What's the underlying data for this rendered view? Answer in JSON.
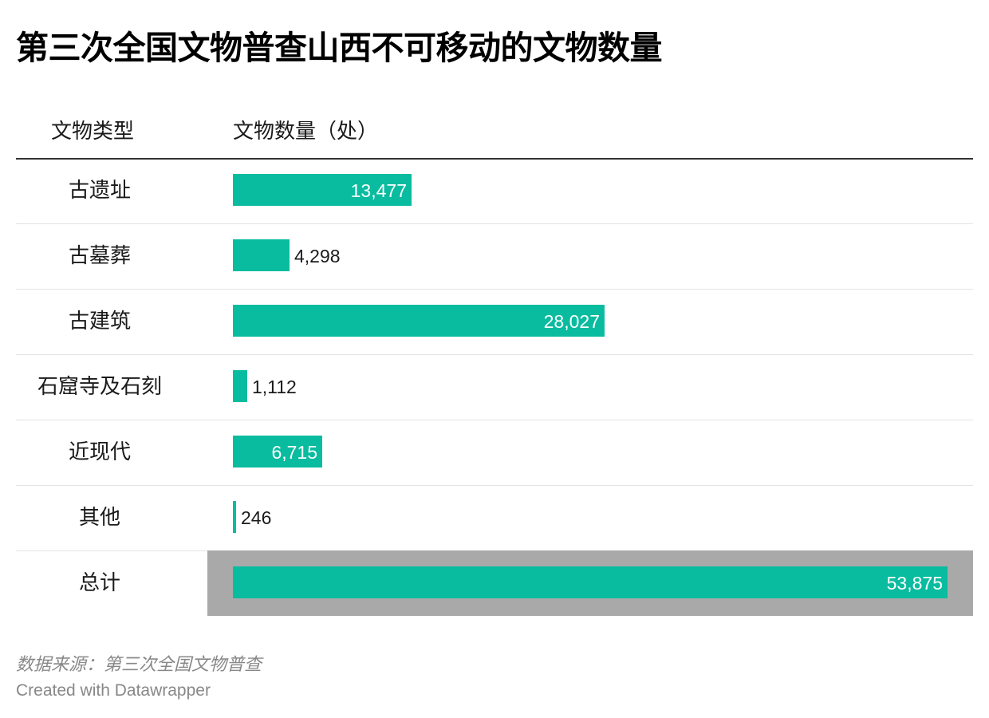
{
  "title": "第三次全国文物普查山西不可移动的文物数量",
  "headers": {
    "type": "文物类型",
    "count": "文物数量（处）"
  },
  "colors": {
    "bar": "#09bc9f",
    "highlight_row": "#a9a9a9"
  },
  "chart_data": {
    "type": "bar",
    "orientation": "horizontal",
    "title": "第三次全国文物普查山西不可移动的文物数量",
    "xlabel": "文物数量（处）",
    "ylabel": "文物类型",
    "categories": [
      "古遗址",
      "古墓葬",
      "古建筑",
      "石窟寺及石刻",
      "近现代",
      "其他",
      "总计"
    ],
    "values": [
      13477,
      4298,
      28027,
      1112,
      6715,
      246,
      53875
    ],
    "labels": [
      "13,477",
      "4,298",
      "28,027",
      "1,112",
      "6,715",
      "246",
      "53,875"
    ],
    "xlim": [
      0,
      53875
    ],
    "highlighted_category": "总计"
  },
  "footer": {
    "source": "数据来源：第三次全国文物普查",
    "credit": "Created with Datawrapper"
  }
}
